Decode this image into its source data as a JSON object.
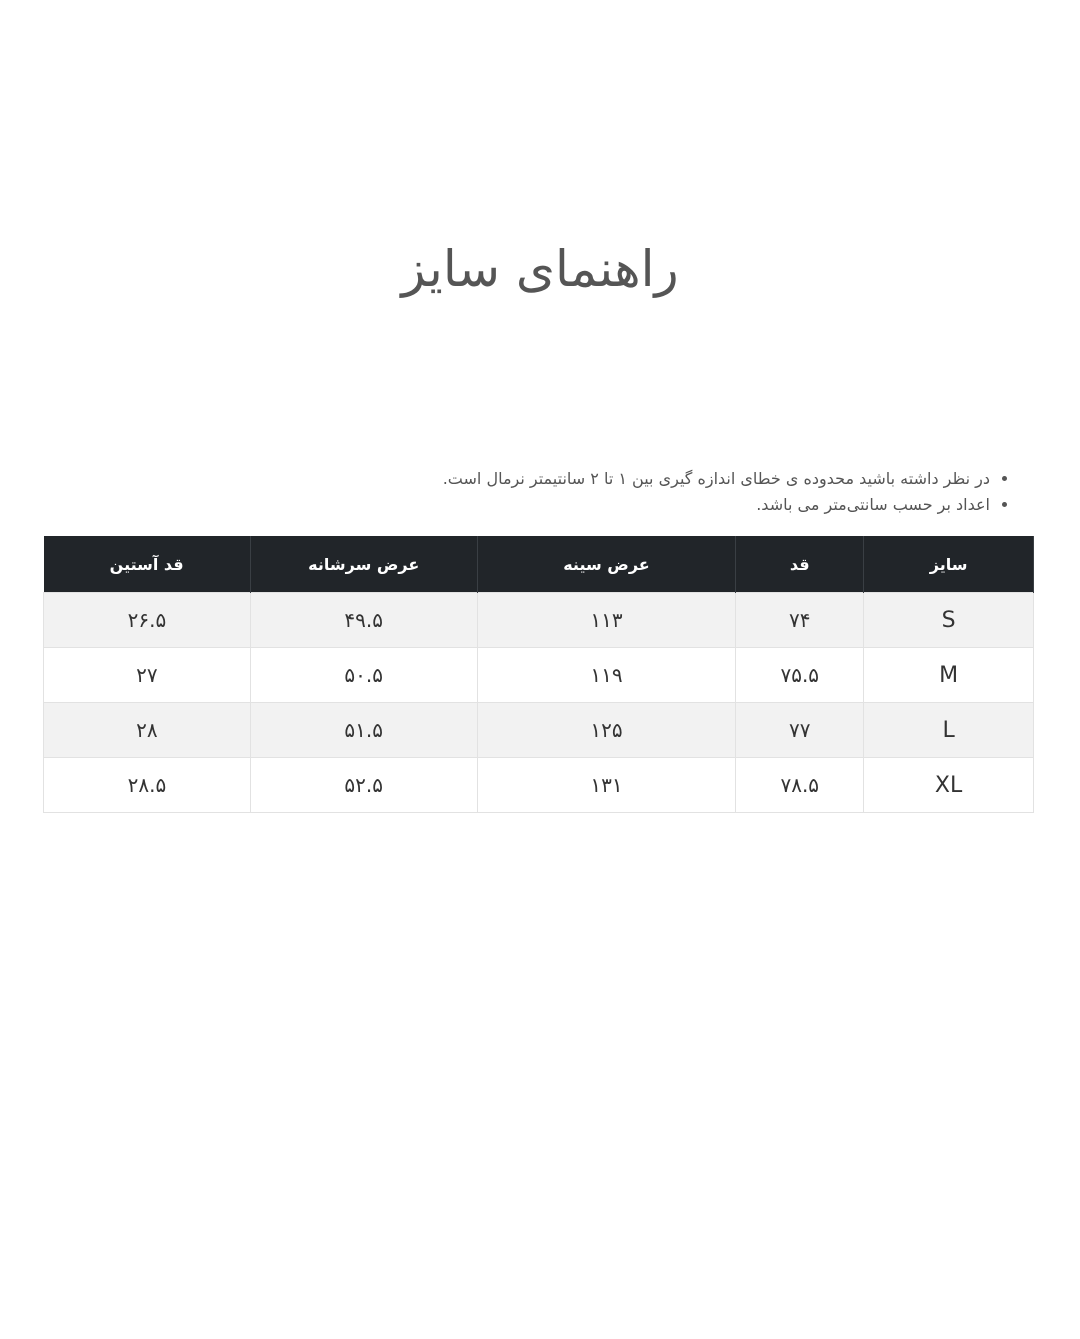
{
  "title": "راهنمای سایز",
  "notes": [
    "در نظر داشته باشید محدوده ی خطای اندازه گیری بین ۱ تا ۲ سانتیمتر نرمال است.",
    "اعداد بر حسب سانتی‌متر می باشد."
  ],
  "table": {
    "headers": [
      "سایز",
      "قد",
      "عرض سینه",
      "عرض سرشانه",
      "قد آستین"
    ],
    "rows": [
      [
        "S",
        "۷۴",
        "۱۱۳",
        "۴۹.۵",
        "۲۶.۵"
      ],
      [
        "M",
        "۷۵.۵",
        "۱۱۹",
        "۵۰.۵",
        "۲۷"
      ],
      [
        "L",
        "۷۷",
        "۱۲۵",
        "۵۱.۵",
        "۲۸"
      ],
      [
        "XL",
        "۷۸.۵",
        "۱۳۱",
        "۵۲.۵",
        "۲۸.۵"
      ]
    ]
  }
}
